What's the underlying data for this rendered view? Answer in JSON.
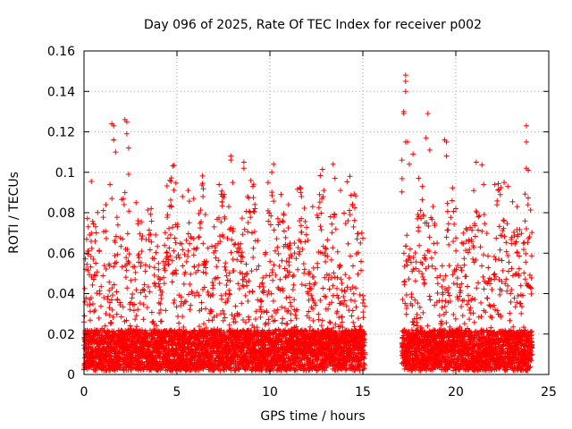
{
  "chart_data": {
    "type": "scatter",
    "title": "Day 096 of 2025, Rate Of TEC Index for receiver p002",
    "xlabel": "GPS time / hours",
    "ylabel": "ROTI / TECUs",
    "xlim": [
      0,
      25
    ],
    "ylim": [
      0,
      0.16
    ],
    "x_ticks": [
      0,
      5,
      10,
      15,
      20,
      25
    ],
    "x_tick_labels": [
      "0",
      "5",
      "10",
      "15",
      "20",
      "25"
    ],
    "y_ticks": [
      0,
      0.02,
      0.04,
      0.06,
      0.08,
      0.1,
      0.12,
      0.14,
      0.16
    ],
    "y_tick_labels": [
      "0",
      "0.02",
      "0.04",
      "0.06",
      "0.08",
      "0.1",
      "0.12",
      "0.14",
      "0.16"
    ],
    "grid": true,
    "marker": "+",
    "series": [
      {
        "name": "ROTI",
        "color": "#ff0000",
        "coverage_hours": [
          [
            0.0,
            15.1
          ],
          [
            17.1,
            24.1
          ]
        ],
        "dense_band_max": 0.02,
        "points": [
          [
            1.5,
            0.124
          ],
          [
            1.6,
            0.123
          ],
          [
            1.6,
            0.116
          ],
          [
            1.7,
            0.11
          ],
          [
            2.2,
            0.126
          ],
          [
            2.3,
            0.125
          ],
          [
            2.3,
            0.119
          ],
          [
            2.4,
            0.112
          ],
          [
            2.4,
            0.099
          ],
          [
            2.2,
            0.09
          ],
          [
            1.4,
            0.094
          ],
          [
            1.5,
            0.087
          ],
          [
            0.3,
            0.069
          ],
          [
            0.2,
            0.061
          ],
          [
            0.5,
            0.057
          ],
          [
            0.1,
            0.052
          ],
          [
            2.8,
            0.085
          ],
          [
            2.9,
            0.076
          ],
          [
            3.5,
            0.069
          ],
          [
            4.5,
            0.079
          ],
          [
            5.3,
            0.088
          ],
          [
            5.6,
            0.091
          ],
          [
            5.9,
            0.087
          ],
          [
            6.4,
            0.088
          ],
          [
            7.0,
            0.073
          ],
          [
            7.5,
            0.068
          ],
          [
            7.9,
            0.108
          ],
          [
            7.9,
            0.106
          ],
          [
            8.0,
            0.095
          ],
          [
            8.6,
            0.105
          ],
          [
            8.6,
            0.102
          ],
          [
            8.8,
            0.088
          ],
          [
            9.2,
            0.082
          ],
          [
            9.9,
            0.095
          ],
          [
            10.2,
            0.104
          ],
          [
            10.1,
            0.1
          ],
          [
            10.6,
            0.089
          ],
          [
            11.0,
            0.084
          ],
          [
            11.7,
            0.088
          ],
          [
            12.3,
            0.083
          ],
          [
            12.9,
            0.091
          ],
          [
            13.4,
            0.104
          ],
          [
            13.5,
            0.097
          ],
          [
            13.8,
            0.091
          ],
          [
            14.2,
            0.076
          ],
          [
            14.5,
            0.073
          ],
          [
            15.0,
            0.039
          ],
          [
            17.3,
            0.148
          ],
          [
            17.3,
            0.145
          ],
          [
            17.3,
            0.14
          ],
          [
            17.2,
            0.13
          ],
          [
            17.2,
            0.129
          ],
          [
            17.4,
            0.115
          ],
          [
            17.3,
            0.115
          ],
          [
            17.1,
            0.106
          ],
          [
            17.5,
            0.104
          ],
          [
            17.7,
            0.109
          ],
          [
            18.0,
            0.097
          ],
          [
            18.5,
            0.129
          ],
          [
            18.4,
            0.117
          ],
          [
            18.6,
            0.111
          ],
          [
            19.4,
            0.116
          ],
          [
            19.5,
            0.115
          ],
          [
            19.5,
            0.108
          ],
          [
            20.0,
            0.082
          ],
          [
            21.1,
            0.105
          ],
          [
            21.5,
            0.094
          ],
          [
            22.1,
            0.094
          ],
          [
            22.6,
            0.095
          ],
          [
            22.8,
            0.093
          ],
          [
            23.3,
            0.083
          ],
          [
            23.8,
            0.123
          ],
          [
            23.8,
            0.115
          ],
          [
            23.8,
            0.102
          ],
          [
            23.9,
            0.101
          ]
        ]
      }
    ]
  }
}
